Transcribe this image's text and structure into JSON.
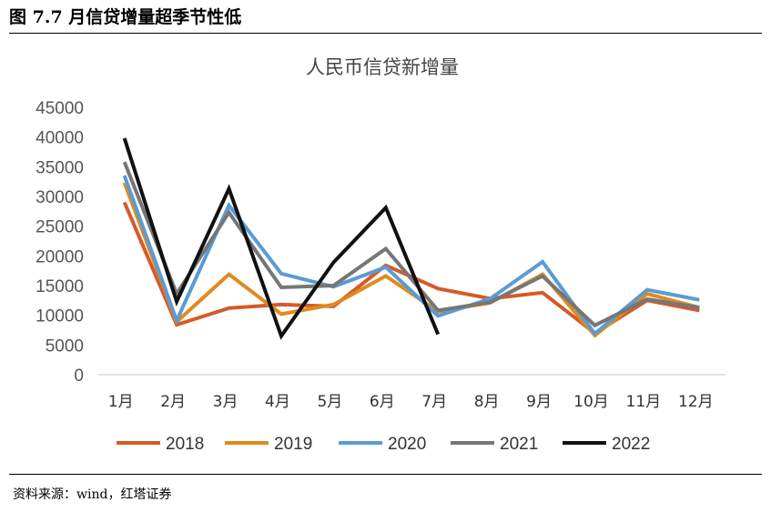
{
  "figure": {
    "title": "图 7.7 月信贷增量超季节性低",
    "source": "资料来源：wind，红塔证券"
  },
  "chart_data": {
    "type": "line",
    "title": "人民币信贷新增量",
    "xlabel": "",
    "ylabel": "",
    "categories": [
      "1月",
      "2月",
      "3月",
      "4月",
      "5月",
      "6月",
      "7月",
      "8月",
      "9月",
      "10月",
      "11月",
      "12月"
    ],
    "yticks": [
      "0",
      "5000",
      "10000",
      "15000",
      "20000",
      "25000",
      "30000",
      "35000",
      "40000",
      "45000"
    ],
    "ylim": [
      0,
      45000
    ],
    "grid": false,
    "legend_position": "bottom",
    "series": [
      {
        "name": "2018",
        "color": "#D45A2A",
        "values": [
          29000,
          8400,
          11200,
          11800,
          11500,
          18400,
          14500,
          12800,
          13800,
          7000,
          12500,
          10800
        ]
      },
      {
        "name": "2019",
        "color": "#E08A1E",
        "values": [
          32300,
          8900,
          16900,
          10200,
          11800,
          16600,
          10600,
          12100,
          16900,
          6600,
          13600,
          11300
        ]
      },
      {
        "name": "2020",
        "color": "#5B9BD5",
        "values": [
          33500,
          9100,
          28500,
          17000,
          14800,
          18100,
          9900,
          12800,
          19000,
          6900,
          14300,
          12600
        ]
      },
      {
        "name": "2021",
        "color": "#767676",
        "values": [
          35800,
          13600,
          27300,
          14700,
          15000,
          21200,
          10800,
          12200,
          16600,
          8300,
          12700,
          11300
        ]
      },
      {
        "name": "2022",
        "color": "#111111",
        "values": [
          39800,
          12300,
          31300,
          6500,
          18900,
          28100,
          6800,
          null,
          null,
          null,
          null,
          null
        ]
      }
    ]
  }
}
